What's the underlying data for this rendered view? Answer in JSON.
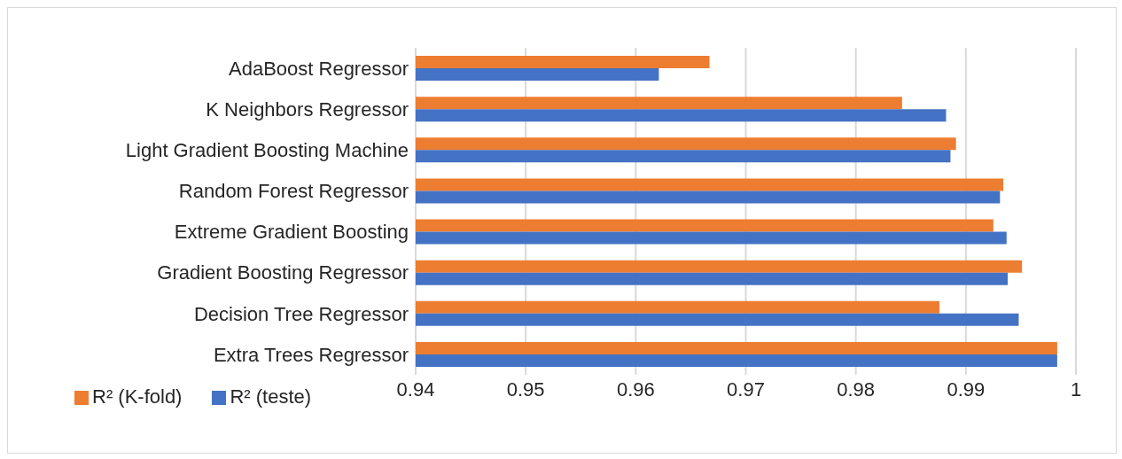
{
  "chart_data": {
    "type": "bar",
    "orientation": "horizontal",
    "categories": [
      "AdaBoost Regressor",
      "K Neighbors Regressor",
      "Light Gradient Boosting Machine",
      "Random Forest Regressor",
      "Extreme Gradient Boosting",
      "Gradient Boosting Regressor",
      "Decision Tree Regressor",
      "Extra Trees Regressor"
    ],
    "series": [
      {
        "name": "R² (K-fold)",
        "color": "#ed7d31",
        "values": [
          0.9667,
          0.9842,
          0.9891,
          0.9934,
          0.9925,
          0.9951,
          0.9876,
          0.9983
        ]
      },
      {
        "name": "R² (teste)",
        "color": "#4472c4",
        "values": [
          0.9621,
          0.9882,
          0.9886,
          0.9931,
          0.9937,
          0.9938,
          0.9948,
          0.9983
        ]
      }
    ],
    "xlim": [
      0.94,
      1
    ],
    "xticks": [
      0.94,
      0.95,
      0.96,
      0.97,
      0.98,
      0.99,
      1
    ],
    "grid": "x",
    "legend": "bottom left"
  }
}
